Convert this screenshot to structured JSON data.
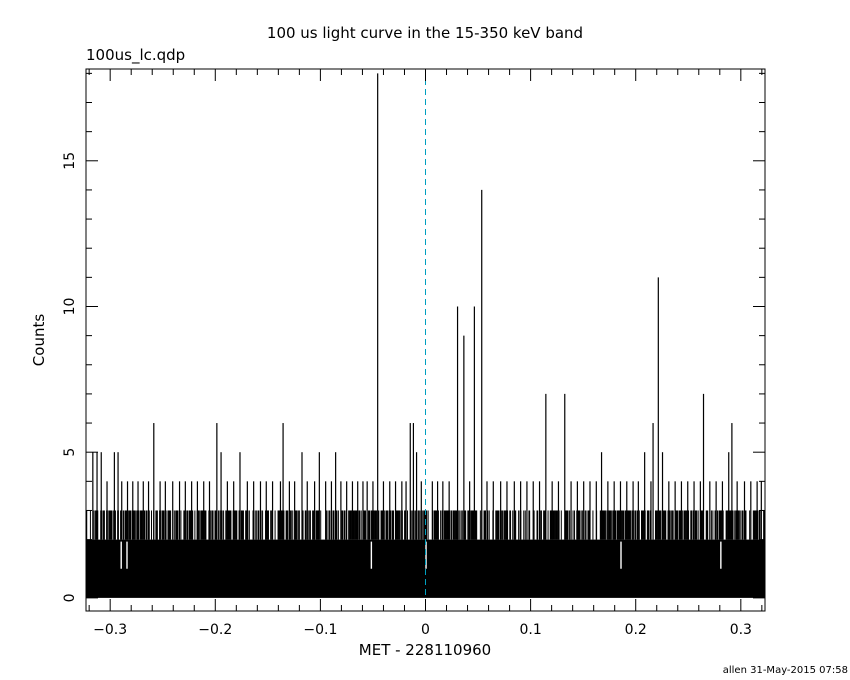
{
  "title": "100 us light curve in the 15-350 keV band",
  "filename": "100us_lc.qdp",
  "footer": "allen 31-May-2015 07:58",
  "chart_data": {
    "type": "line",
    "style": "histogram",
    "xlabel": "MET - 228110960",
    "ylabel": "Counts",
    "xlim": [
      -0.323,
      0.323
    ],
    "ylim": [
      -0.45,
      18.15
    ],
    "xticks": [
      -0.3,
      -0.2,
      -0.1,
      0,
      0.1,
      0.2,
      0.3
    ],
    "xtick_labels": [
      "−0.3",
      "−0.2",
      "−0.1",
      "0",
      "0.1",
      "0.2",
      "0.3"
    ],
    "yticks": [
      0,
      5,
      10,
      15
    ],
    "ytick_labels": [
      "0",
      "5",
      "10",
      "15"
    ],
    "bin_width": 0.0001,
    "baseline_band": {
      "low": 0,
      "high": 2
    },
    "reference_line": {
      "x": 0,
      "style": "dashed",
      "color": "#00a0c0"
    },
    "peaks": [
      {
        "x": -0.3165,
        "y": 5
      },
      {
        "x": -0.3125,
        "y": 5
      },
      {
        "x": -0.3085,
        "y": 5
      },
      {
        "x": -0.303,
        "y": 4
      },
      {
        "x": -0.296,
        "y": 5
      },
      {
        "x": -0.2925,
        "y": 5
      },
      {
        "x": -0.289,
        "y": 4
      },
      {
        "x": -0.2835,
        "y": 4
      },
      {
        "x": -0.2785,
        "y": 4
      },
      {
        "x": -0.2735,
        "y": 4
      },
      {
        "x": -0.2685,
        "y": 4
      },
      {
        "x": -0.2635,
        "y": 4
      },
      {
        "x": -0.2585,
        "y": 6
      },
      {
        "x": -0.2525,
        "y": 4
      },
      {
        "x": -0.2475,
        "y": 4
      },
      {
        "x": -0.2405,
        "y": 4
      },
      {
        "x": -0.234,
        "y": 4
      },
      {
        "x": -0.2285,
        "y": 4
      },
      {
        "x": -0.2225,
        "y": 4
      },
      {
        "x": -0.217,
        "y": 4
      },
      {
        "x": -0.211,
        "y": 4
      },
      {
        "x": -0.2055,
        "y": 4
      },
      {
        "x": -0.1985,
        "y": 6
      },
      {
        "x": -0.1945,
        "y": 5
      },
      {
        "x": -0.1885,
        "y": 4
      },
      {
        "x": -0.1825,
        "y": 4
      },
      {
        "x": -0.1765,
        "y": 5
      },
      {
        "x": -0.1695,
        "y": 4
      },
      {
        "x": -0.1635,
        "y": 4
      },
      {
        "x": -0.157,
        "y": 4
      },
      {
        "x": -0.1515,
        "y": 4
      },
      {
        "x": -0.1455,
        "y": 4
      },
      {
        "x": -0.138,
        "y": 4
      },
      {
        "x": -0.1355,
        "y": 6
      },
      {
        "x": -0.1295,
        "y": 4
      },
      {
        "x": -0.1245,
        "y": 4
      },
      {
        "x": -0.1175,
        "y": 5
      },
      {
        "x": -0.1125,
        "y": 4
      },
      {
        "x": -0.1055,
        "y": 4
      },
      {
        "x": -0.101,
        "y": 5
      },
      {
        "x": -0.095,
        "y": 4
      },
      {
        "x": -0.0895,
        "y": 4
      },
      {
        "x": -0.0855,
        "y": 5
      },
      {
        "x": -0.0805,
        "y": 4
      },
      {
        "x": -0.075,
        "y": 4
      },
      {
        "x": -0.0695,
        "y": 4
      },
      {
        "x": -0.0645,
        "y": 4
      },
      {
        "x": -0.0595,
        "y": 4
      },
      {
        "x": -0.0555,
        "y": 4
      },
      {
        "x": -0.05,
        "y": 4
      },
      {
        "x": -0.0455,
        "y": 18
      },
      {
        "x": -0.04,
        "y": 4
      },
      {
        "x": -0.034,
        "y": 4
      },
      {
        "x": -0.0285,
        "y": 4
      },
      {
        "x": -0.0225,
        "y": 4
      },
      {
        "x": -0.0185,
        "y": 4
      },
      {
        "x": -0.0145,
        "y": 6
      },
      {
        "x": -0.0115,
        "y": 6
      },
      {
        "x": -0.0085,
        "y": 5
      },
      {
        "x": -0.004,
        "y": 4
      },
      {
        "x": 0.0065,
        "y": 4
      },
      {
        "x": 0.0115,
        "y": 4
      },
      {
        "x": 0.0165,
        "y": 4
      },
      {
        "x": 0.0225,
        "y": 4
      },
      {
        "x": 0.0305,
        "y": 10
      },
      {
        "x": 0.0365,
        "y": 9
      },
      {
        "x": 0.042,
        "y": 4
      },
      {
        "x": 0.0465,
        "y": 10
      },
      {
        "x": 0.0535,
        "y": 14
      },
      {
        "x": 0.0585,
        "y": 4
      },
      {
        "x": 0.0645,
        "y": 4
      },
      {
        "x": 0.0715,
        "y": 4
      },
      {
        "x": 0.0775,
        "y": 4
      },
      {
        "x": 0.0845,
        "y": 4
      },
      {
        "x": 0.0905,
        "y": 4
      },
      {
        "x": 0.0965,
        "y": 4
      },
      {
        "x": 0.1025,
        "y": 4
      },
      {
        "x": 0.1085,
        "y": 4
      },
      {
        "x": 0.1145,
        "y": 7
      },
      {
        "x": 0.1205,
        "y": 4
      },
      {
        "x": 0.1265,
        "y": 4
      },
      {
        "x": 0.1325,
        "y": 7
      },
      {
        "x": 0.1385,
        "y": 4
      },
      {
        "x": 0.1445,
        "y": 4
      },
      {
        "x": 0.1505,
        "y": 4
      },
      {
        "x": 0.1565,
        "y": 4
      },
      {
        "x": 0.1625,
        "y": 4
      },
      {
        "x": 0.1675,
        "y": 5
      },
      {
        "x": 0.1735,
        "y": 4
      },
      {
        "x": 0.1795,
        "y": 4
      },
      {
        "x": 0.1855,
        "y": 4
      },
      {
        "x": 0.1915,
        "y": 4
      },
      {
        "x": 0.1975,
        "y": 4
      },
      {
        "x": 0.2025,
        "y": 4
      },
      {
        "x": 0.2085,
        "y": 5
      },
      {
        "x": 0.2145,
        "y": 4
      },
      {
        "x": 0.2165,
        "y": 6
      },
      {
        "x": 0.2215,
        "y": 11
      },
      {
        "x": 0.2255,
        "y": 5
      },
      {
        "x": 0.2315,
        "y": 4
      },
      {
        "x": 0.2375,
        "y": 4
      },
      {
        "x": 0.2435,
        "y": 4
      },
      {
        "x": 0.2495,
        "y": 4
      },
      {
        "x": 0.2555,
        "y": 4
      },
      {
        "x": 0.2615,
        "y": 4
      },
      {
        "x": 0.2645,
        "y": 7
      },
      {
        "x": 0.2705,
        "y": 4
      },
      {
        "x": 0.2765,
        "y": 4
      },
      {
        "x": 0.2825,
        "y": 4
      },
      {
        "x": 0.2885,
        "y": 5
      },
      {
        "x": 0.2915,
        "y": 6
      },
      {
        "x": 0.2965,
        "y": 4
      },
      {
        "x": 0.3035,
        "y": 4
      },
      {
        "x": 0.3095,
        "y": 4
      },
      {
        "x": 0.3155,
        "y": 4
      },
      {
        "x": 0.3195,
        "y": 4
      }
    ],
    "dips": [
      {
        "x": -0.2895,
        "y": 1
      },
      {
        "x": -0.284,
        "y": 1
      },
      {
        "x": -0.0515,
        "y": 1
      },
      {
        "x": 0.0005,
        "y": 1
      },
      {
        "x": 0.186,
        "y": 1
      },
      {
        "x": 0.281,
        "y": 1
      }
    ]
  }
}
